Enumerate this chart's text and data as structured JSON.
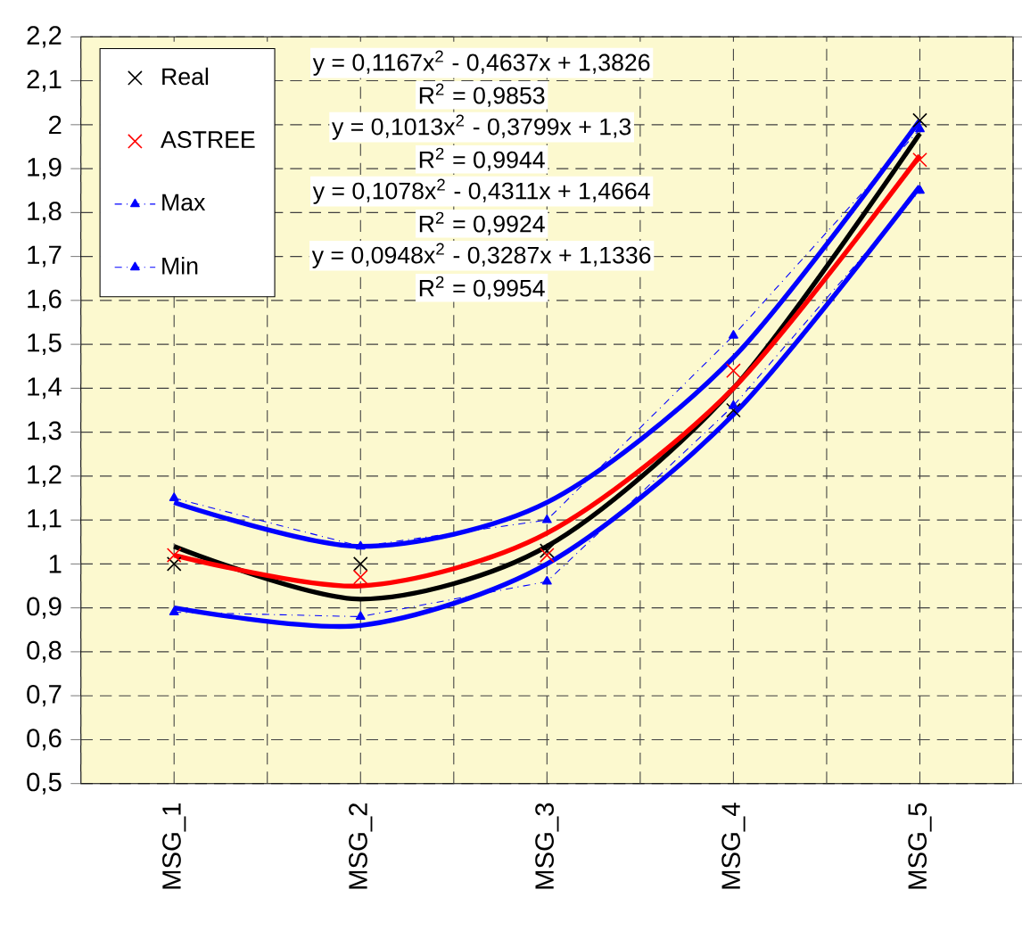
{
  "chart_data": {
    "type": "scatter",
    "categories": [
      "MSG_1",
      "MSG_2",
      "MSG_3",
      "MSG_4",
      "MSG_5"
    ],
    "ylim": [
      0.5,
      2.2
    ],
    "yticks": [
      {
        "value": 0.5,
        "label": "0,5"
      },
      {
        "value": 0.6,
        "label": "0,6"
      },
      {
        "value": 0.7,
        "label": "0,7"
      },
      {
        "value": 0.8,
        "label": "0,8"
      },
      {
        "value": 0.9,
        "label": "0,9"
      },
      1,
      {
        "value": 1.1,
        "label": "1,1"
      },
      {
        "value": 1.2,
        "label": "1,2"
      },
      {
        "value": 1.3,
        "label": "1,3"
      },
      {
        "value": 1.4,
        "label": "1,4"
      },
      {
        "value": 1.5,
        "label": "1,5"
      },
      {
        "value": 1.6,
        "label": "1,6"
      },
      {
        "value": 1.7,
        "label": "1,7"
      },
      {
        "value": 1.8,
        "label": "1,8"
      },
      {
        "value": 1.9,
        "label": "1,9"
      },
      2,
      {
        "value": 2.1,
        "label": "2,1"
      },
      {
        "value": 2.2,
        "label": "2,2"
      }
    ],
    "grid": true,
    "legend": "top left",
    "series": [
      {
        "name": "Real",
        "marker": "cross",
        "color": "#000000",
        "values": [
          1.0,
          1.0,
          1.03,
          1.35,
          2.01
        ]
      },
      {
        "name": "ASTREE",
        "marker": "cross",
        "color": "#ff0000",
        "values": [
          1.02,
          0.97,
          1.02,
          1.44,
          1.92
        ]
      },
      {
        "name": "Max",
        "type": "line",
        "marker": "triangle",
        "line_style": "dashed",
        "color": "#0000ff",
        "values": [
          1.15,
          1.04,
          1.1,
          1.52,
          1.99
        ]
      },
      {
        "name": "Min",
        "type": "line",
        "marker": "triangle",
        "line_style": "dashed",
        "color": "#0000ff",
        "values": [
          0.89,
          0.88,
          0.96,
          1.36,
          1.85
        ]
      },
      {
        "type": "line",
        "color": "#000000",
        "values": [
          1.04,
          0.92,
          1.04,
          1.4,
          1.98
        ]
      },
      {
        "type": "line",
        "color": "#ff0000",
        "values": [
          1.02,
          0.95,
          1.07,
          1.4,
          1.93
        ]
      },
      {
        "type": "line",
        "color": "#0000ff",
        "values": [
          1.14,
          1.04,
          1.14,
          1.47,
          2.01
        ]
      },
      {
        "type": "line",
        "color": "#0000ff",
        "values": [
          0.9,
          0.86,
          1.0,
          1.34,
          1.86
        ]
      }
    ],
    "annotations": [
      "y = 0,1167x$^{2}$ - 0,4637x + 1,3826",
      "R$^{2}$ = 0,9853",
      "y = 0,1013x$^{2}$ - 0,3799x + 1,3",
      "R$^{2}$ = 0,9944",
      "y = 0,1078x$^{2}$ - 0,4311x + 1,4664",
      "R$^{2}$ = 0,9924",
      "y = 0,0948x$^{2}$ - 0,3287x + 1,1336",
      "R$^{2}$ = 0,9954"
    ]
  }
}
